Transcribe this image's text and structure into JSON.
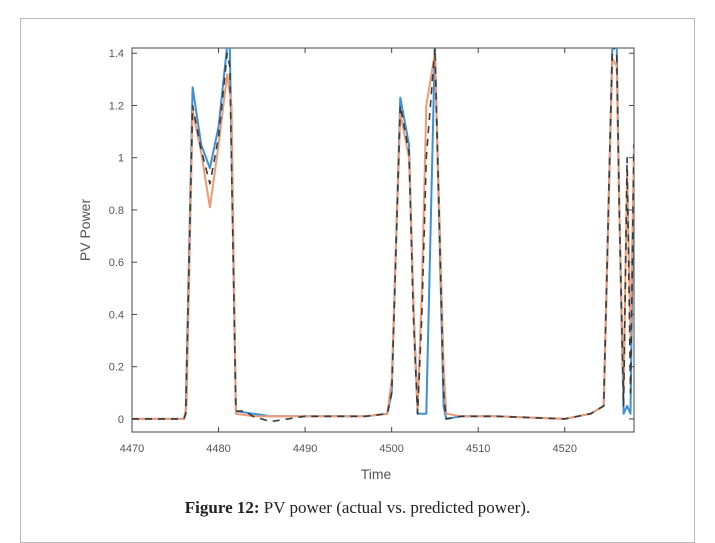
{
  "caption": {
    "label": "Figure 12:",
    "text": " PV power (actual vs. predicted power)."
  },
  "chart_data": {
    "type": "line",
    "xlabel": "Time",
    "ylabel": "PV Power",
    "xlim": [
      4470,
      4528
    ],
    "ylim": [
      -0.05,
      1.42
    ],
    "xticks": [
      4470,
      4480,
      4490,
      4500,
      4510,
      4520
    ],
    "yticks": [
      0,
      0.2,
      0.4,
      0.6,
      0.8,
      1,
      1.2,
      1.4
    ],
    "ytick_labels": [
      "0",
      "0.2",
      "0.4",
      "0.6",
      "0.8",
      "1",
      "1.2",
      "1.4"
    ],
    "grid": false,
    "colors": {
      "actual": "#3d8fd6",
      "predicted": "#ee9a74",
      "dashed": "#3a3a3a"
    },
    "series": [
      {
        "style": "solid-blue",
        "x": [
          4470,
          4476,
          4476.2,
          4477,
          4478,
          4479,
          4480,
          4481,
          4481.3,
          4482,
          4484,
          4486,
          4490,
          4494,
          4497,
          4499.5,
          4500,
          4501,
          4502,
          4502.5,
          4503,
          4503.5,
          4504,
          4505,
          4506,
          4506.3,
          4508,
          4512,
          4520,
          4523,
          4524.5,
          4525.5,
          4526,
          4526.3,
          4526.8,
          4527.2,
          4527.6,
          4528
        ],
        "y": [
          0,
          0,
          0.02,
          1.27,
          1.05,
          0.96,
          1.12,
          1.43,
          1.43,
          0.03,
          0.02,
          0.01,
          0.01,
          0.01,
          0.01,
          0.02,
          0.1,
          1.23,
          1.05,
          0.45,
          0.02,
          0.02,
          0.02,
          1.43,
          0.05,
          0.0,
          0.01,
          0.01,
          0.0,
          0.02,
          0.05,
          1.43,
          1.43,
          0.8,
          0.02,
          0.05,
          0.02,
          1.05
        ]
      },
      {
        "style": "solid-orange",
        "x": [
          4470,
          4476,
          4476.3,
          4477,
          4478,
          4479,
          4480,
          4481,
          4481.5,
          4482,
          4484,
          4486,
          4490,
          4494,
          4497,
          4499.5,
          4500,
          4501,
          4502,
          4502.7,
          4503,
          4503.5,
          4504,
          4505,
          4506,
          4506.3,
          4508,
          4512,
          4520,
          4523,
          4524.5,
          4525.5,
          4526,
          4526.3,
          4526.8,
          4527.2,
          4527.6,
          4528
        ],
        "y": [
          0,
          0,
          0.05,
          1.18,
          1.02,
          0.81,
          1.05,
          1.32,
          1.2,
          0.02,
          0.01,
          0.01,
          0.01,
          0.01,
          0.01,
          0.02,
          0.15,
          1.17,
          1.0,
          0.25,
          0.03,
          0.5,
          1.2,
          1.4,
          0.2,
          0.02,
          0.01,
          0.01,
          0.0,
          0.02,
          0.05,
          1.38,
          1.35,
          0.8,
          0.1,
          0.95,
          0.3,
          1.05
        ]
      },
      {
        "style": "dashed-dark",
        "x": [
          4470,
          4476,
          4476.2,
          4477,
          4478,
          4479,
          4480,
          4481,
          4481.3,
          4482,
          4483,
          4484,
          4486,
          4490,
          4494,
          4497,
          4499.5,
          4500,
          4501,
          4502,
          4502.5,
          4503,
          4503.5,
          4504,
          4505,
          4506,
          4506.3,
          4508,
          4512,
          4520,
          4523,
          4524.5,
          4525.5,
          4526,
          4526.3,
          4526.8,
          4527.2,
          4527.6,
          4528
        ],
        "y": [
          0,
          0,
          0.02,
          1.2,
          1.03,
          0.9,
          1.08,
          1.4,
          1.35,
          0.03,
          0.03,
          0.01,
          -0.01,
          0.01,
          0.01,
          0.01,
          0.02,
          0.1,
          1.2,
          1.02,
          0.4,
          0.02,
          0.4,
          1.0,
          1.42,
          0.1,
          0.0,
          0.01,
          0.01,
          0.0,
          0.02,
          0.05,
          1.43,
          1.4,
          0.8,
          0.05,
          1.0,
          0.1,
          1.05
        ]
      }
    ]
  }
}
